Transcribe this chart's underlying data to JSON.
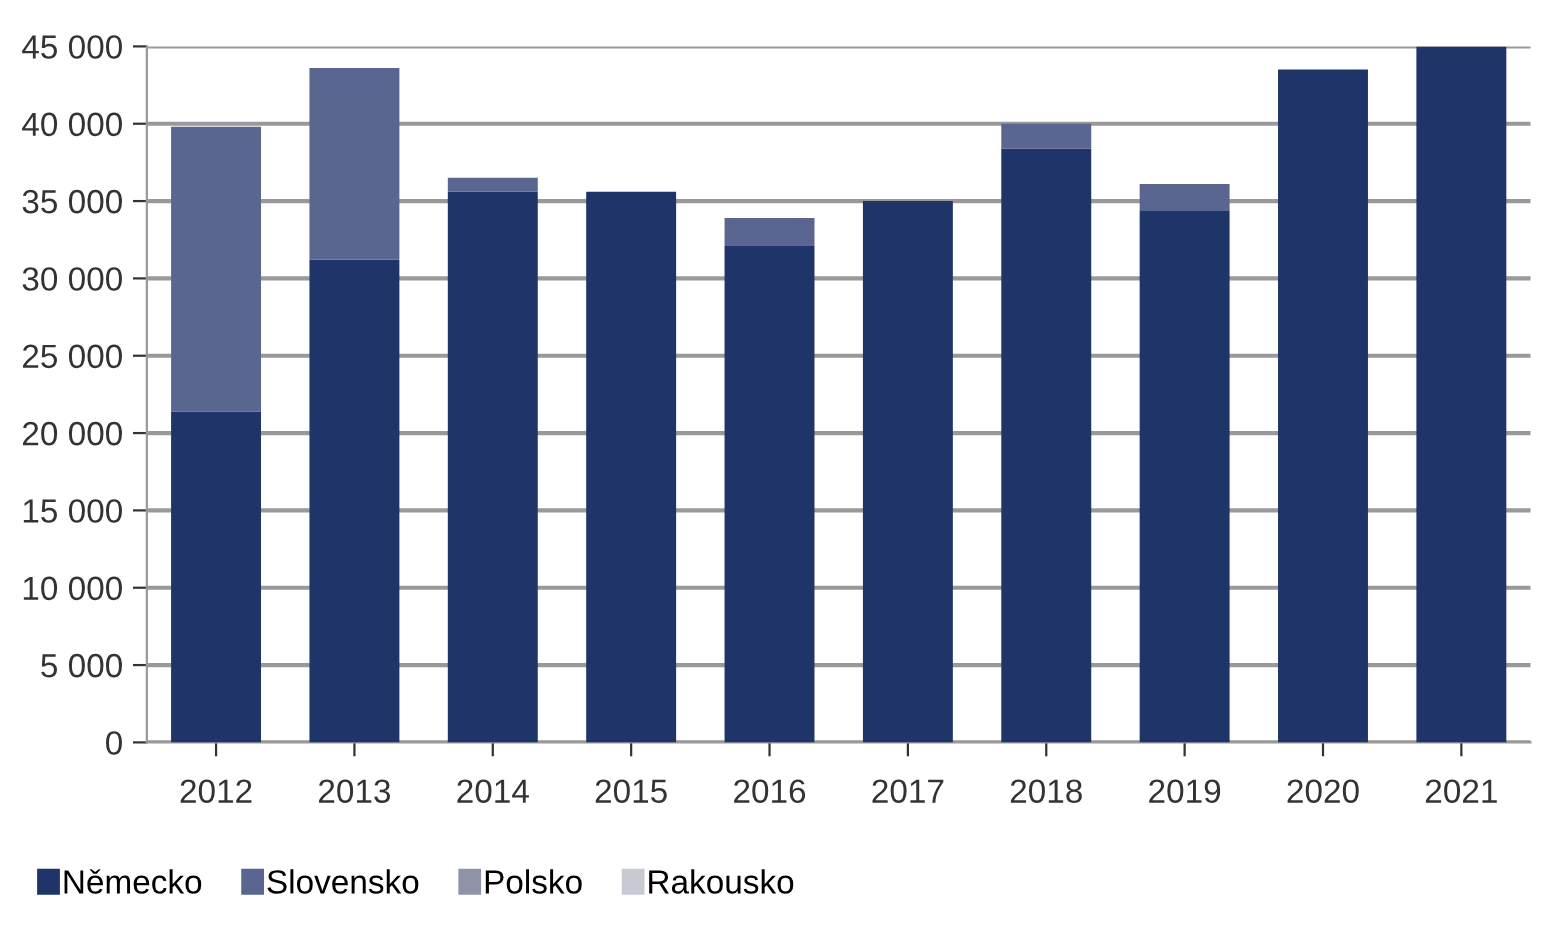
{
  "chart_data": {
    "type": "bar",
    "stacked": true,
    "categories": [
      "2012",
      "2013",
      "2014",
      "2015",
      "2016",
      "2017",
      "2018",
      "2019",
      "2020",
      "2021"
    ],
    "series": [
      {
        "name": "Německo",
        "color": "#1f3468",
        "values": [
          21400,
          31200,
          35600,
          35600,
          32100,
          35000,
          38400,
          34400,
          43500,
          45000
        ]
      },
      {
        "name": "Slovensko",
        "color": "#5a6590",
        "values": [
          18400,
          12400,
          900,
          0,
          1800,
          0,
          1600,
          1700,
          0,
          0
        ]
      },
      {
        "name": "Polsko",
        "color": "#8e94a8",
        "values": [
          0,
          0,
          0,
          0,
          0,
          0,
          0,
          0,
          0,
          0
        ]
      },
      {
        "name": "Rakousko",
        "color": "#c8cad3",
        "values": [
          0,
          0,
          0,
          0,
          0,
          0,
          0,
          0,
          0,
          0
        ]
      }
    ],
    "ylim": [
      0,
      45000
    ],
    "yticks": [
      0,
      {
        "value": 5000,
        "label": "5 000"
      },
      {
        "value": 10000,
        "label": "10 000"
      },
      {
        "value": 15000,
        "label": "15 000"
      },
      {
        "value": 20000,
        "label": "20 000"
      },
      {
        "value": 25000,
        "label": "25 000"
      },
      {
        "value": 30000,
        "label": "30 000"
      },
      {
        "value": 35000,
        "label": "35 000"
      },
      {
        "value": 40000,
        "label": "40 000"
      },
      {
        "value": 45000,
        "label": "45 000"
      }
    ],
    "grid": "y",
    "legend": "bottom left"
  }
}
